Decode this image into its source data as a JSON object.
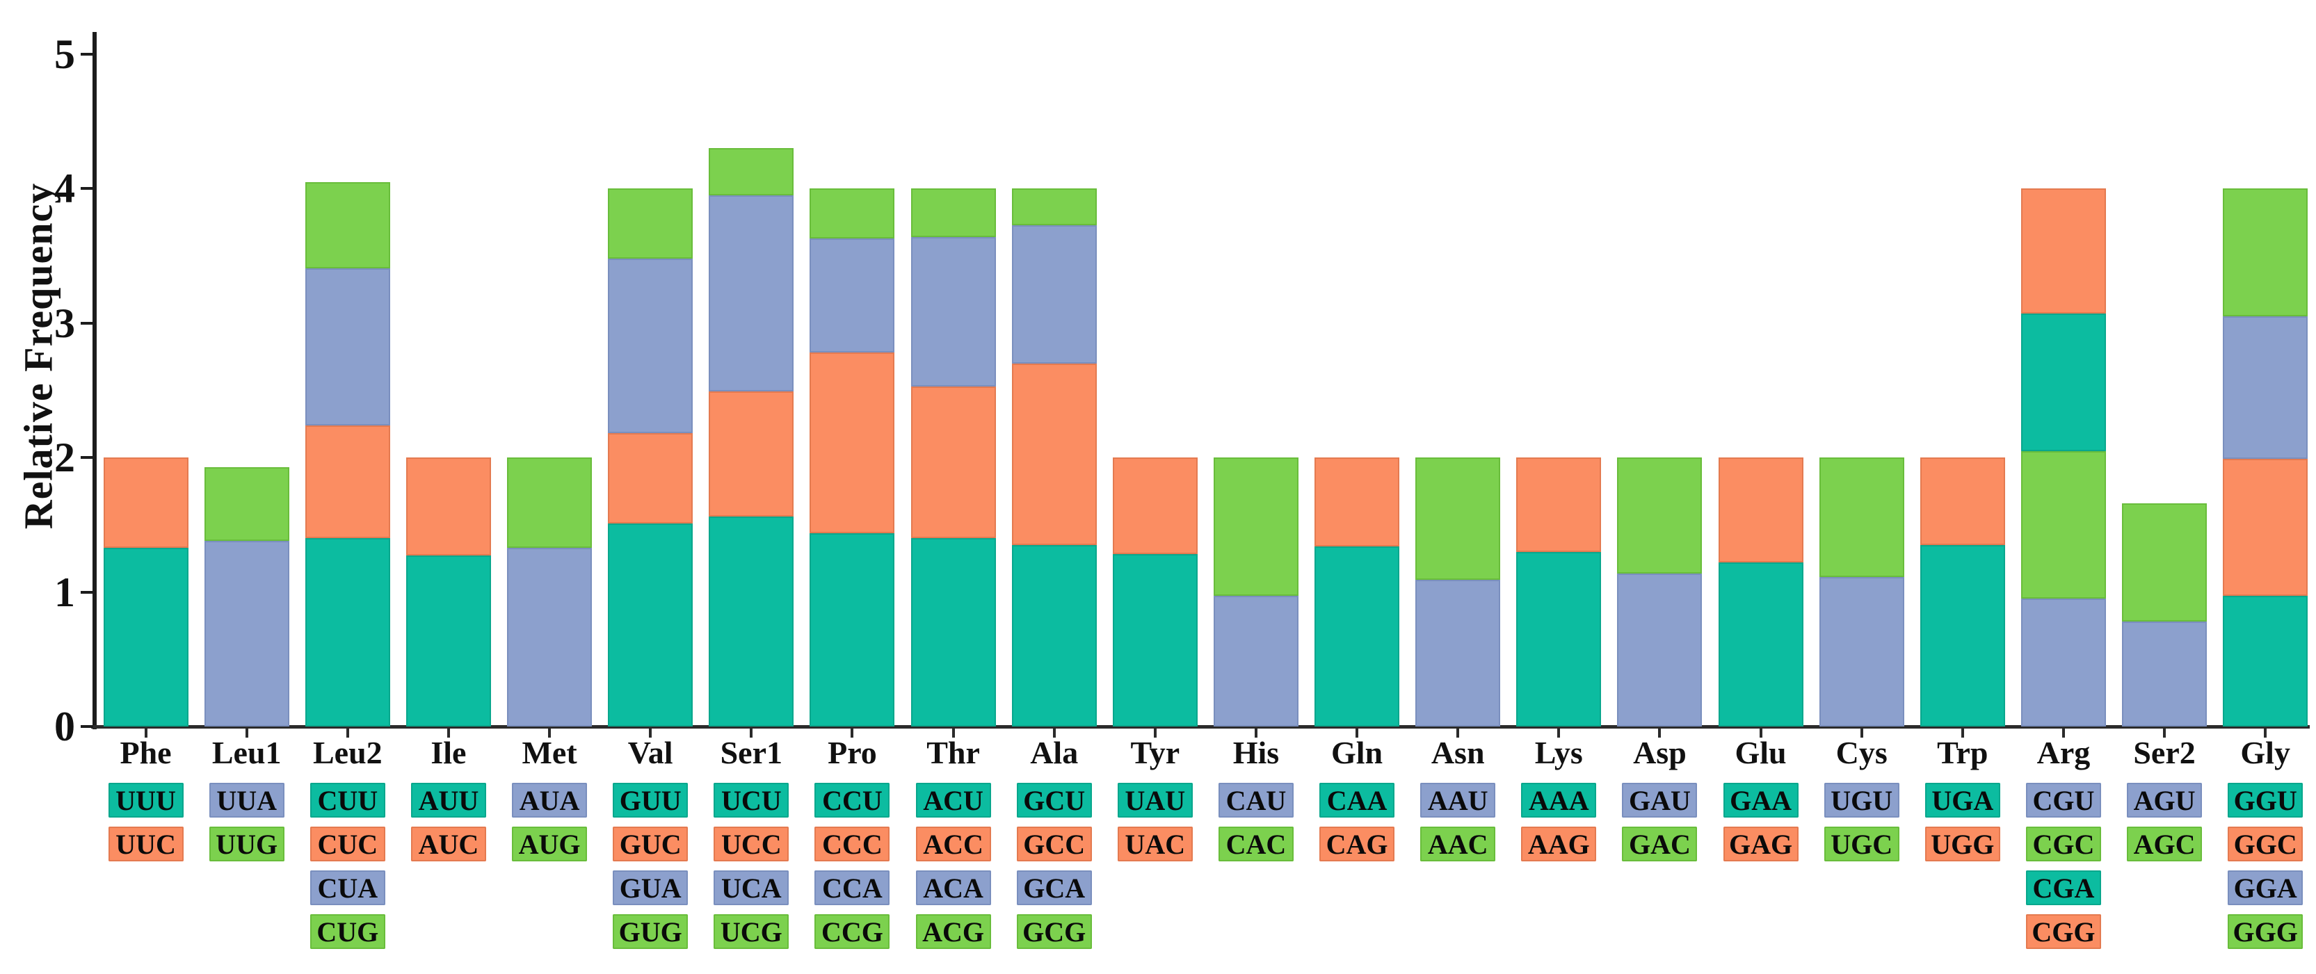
{
  "figure": {
    "background": "#ffffff",
    "axis_color": "#1c1c1c",
    "colors": {
      "teal": "#0CBCA0",
      "orange": "#FB8D62",
      "blue": "#8CA0CD",
      "green": "#7CD14E"
    },
    "border_colors": {
      "teal": "#09A78D",
      "orange": "#E47A50",
      "blue": "#7A8FBE",
      "green": "#69BD3B"
    }
  },
  "chart_data": {
    "type": "bar",
    "stacked": true,
    "title": "",
    "xlabel": "",
    "ylabel": "Relative Frequency",
    "ylim": [
      0,
      5
    ],
    "yticks": [
      "0",
      "1",
      "2",
      "3",
      "4",
      "5"
    ],
    "grid": false,
    "legend_position": "none",
    "legend_note": "codon chips under each category act as the legend",
    "categories": [
      "Phe",
      "Leu1",
      "Leu2",
      "Ile",
      "Met",
      "Val",
      "Ser1",
      "Pro",
      "Thr",
      "Ala",
      "Tyr",
      "His",
      "Gln",
      "Asn",
      "Lys",
      "Asp",
      "Glu",
      "Cys",
      "Trp",
      "Arg",
      "Ser2",
      "Gly"
    ],
    "groups": [
      {
        "label": "Phe",
        "codons": [
          {
            "codon": "UUU",
            "color": "teal",
            "value": 1.33
          },
          {
            "codon": "UUC",
            "color": "orange",
            "value": 0.67
          }
        ]
      },
      {
        "label": "Leu1",
        "codons": [
          {
            "codon": "UUA",
            "color": "blue",
            "value": 1.38
          },
          {
            "codon": "UUG",
            "color": "green",
            "value": 0.55
          }
        ]
      },
      {
        "label": "Leu2",
        "codons": [
          {
            "codon": "CUU",
            "color": "teal",
            "value": 1.4
          },
          {
            "codon": "CUC",
            "color": "orange",
            "value": 0.84
          },
          {
            "codon": "CUA",
            "color": "blue",
            "value": 1.17
          },
          {
            "codon": "CUG",
            "color": "green",
            "value": 0.64
          }
        ]
      },
      {
        "label": "Ile",
        "codons": [
          {
            "codon": "AUU",
            "color": "teal",
            "value": 1.27
          },
          {
            "codon": "AUC",
            "color": "orange",
            "value": 0.73
          }
        ]
      },
      {
        "label": "Met",
        "codons": [
          {
            "codon": "AUA",
            "color": "blue",
            "value": 1.33
          },
          {
            "codon": "AUG",
            "color": "green",
            "value": 0.67
          }
        ]
      },
      {
        "label": "Val",
        "codons": [
          {
            "codon": "GUU",
            "color": "teal",
            "value": 1.51
          },
          {
            "codon": "GUC",
            "color": "orange",
            "value": 0.67
          },
          {
            "codon": "GUA",
            "color": "blue",
            "value": 1.3
          },
          {
            "codon": "GUG",
            "color": "green",
            "value": 0.52
          }
        ]
      },
      {
        "label": "Ser1",
        "codons": [
          {
            "codon": "UCU",
            "color": "teal",
            "value": 1.56
          },
          {
            "codon": "UCC",
            "color": "orange",
            "value": 0.93
          },
          {
            "codon": "UCA",
            "color": "blue",
            "value": 1.46
          },
          {
            "codon": "UCG",
            "color": "green",
            "value": 0.35
          }
        ]
      },
      {
        "label": "Pro",
        "codons": [
          {
            "codon": "CCU",
            "color": "teal",
            "value": 1.44
          },
          {
            "codon": "CCC",
            "color": "orange",
            "value": 1.34
          },
          {
            "codon": "CCA",
            "color": "blue",
            "value": 0.85
          },
          {
            "codon": "CCG",
            "color": "green",
            "value": 0.37
          }
        ]
      },
      {
        "label": "Thr",
        "codons": [
          {
            "codon": "ACU",
            "color": "teal",
            "value": 1.4
          },
          {
            "codon": "ACC",
            "color": "orange",
            "value": 1.13
          },
          {
            "codon": "ACA",
            "color": "blue",
            "value": 1.11
          },
          {
            "codon": "ACG",
            "color": "green",
            "value": 0.36
          }
        ]
      },
      {
        "label": "Ala",
        "codons": [
          {
            "codon": "GCU",
            "color": "teal",
            "value": 1.35
          },
          {
            "codon": "GCC",
            "color": "orange",
            "value": 1.35
          },
          {
            "codon": "GCA",
            "color": "blue",
            "value": 1.03
          },
          {
            "codon": "GCG",
            "color": "green",
            "value": 0.27
          }
        ]
      },
      {
        "label": "Tyr",
        "codons": [
          {
            "codon": "UAU",
            "color": "teal",
            "value": 1.28
          },
          {
            "codon": "UAC",
            "color": "orange",
            "value": 0.72
          }
        ]
      },
      {
        "label": "His",
        "codons": [
          {
            "codon": "CAU",
            "color": "blue",
            "value": 0.97
          },
          {
            "codon": "CAC",
            "color": "green",
            "value": 1.03
          }
        ]
      },
      {
        "label": "Gln",
        "codons": [
          {
            "codon": "CAA",
            "color": "teal",
            "value": 1.34
          },
          {
            "codon": "CAG",
            "color": "orange",
            "value": 0.66
          }
        ]
      },
      {
        "label": "Asn",
        "codons": [
          {
            "codon": "AAU",
            "color": "blue",
            "value": 1.09
          },
          {
            "codon": "AAC",
            "color": "green",
            "value": 0.91
          }
        ]
      },
      {
        "label": "Lys",
        "codons": [
          {
            "codon": "AAA",
            "color": "teal",
            "value": 1.3
          },
          {
            "codon": "AAG",
            "color": "orange",
            "value": 0.7
          }
        ]
      },
      {
        "label": "Asp",
        "codons": [
          {
            "codon": "GAU",
            "color": "blue",
            "value": 1.14
          },
          {
            "codon": "GAC",
            "color": "green",
            "value": 0.86
          }
        ]
      },
      {
        "label": "Glu",
        "codons": [
          {
            "codon": "GAA",
            "color": "teal",
            "value": 1.22
          },
          {
            "codon": "GAG",
            "color": "orange",
            "value": 0.78
          }
        ]
      },
      {
        "label": "Cys",
        "codons": [
          {
            "codon": "UGU",
            "color": "blue",
            "value": 1.11
          },
          {
            "codon": "UGC",
            "color": "green",
            "value": 0.89
          }
        ]
      },
      {
        "label": "Trp",
        "codons": [
          {
            "codon": "UGA",
            "color": "teal",
            "value": 1.35
          },
          {
            "codon": "UGG",
            "color": "orange",
            "value": 0.65
          }
        ]
      },
      {
        "label": "Arg",
        "codons": [
          {
            "codon": "CGU",
            "color": "blue",
            "value": 0.95
          },
          {
            "codon": "CGC",
            "color": "green",
            "value": 1.1
          },
          {
            "codon": "CGA",
            "color": "teal",
            "value": 1.02
          },
          {
            "codon": "CGG",
            "color": "orange",
            "value": 0.93
          }
        ]
      },
      {
        "label": "Ser2",
        "codons": [
          {
            "codon": "AGU",
            "color": "blue",
            "value": 0.78
          },
          {
            "codon": "AGC",
            "color": "green",
            "value": 0.88
          }
        ]
      },
      {
        "label": "Gly",
        "codons": [
          {
            "codon": "GGU",
            "color": "teal",
            "value": 0.97
          },
          {
            "codon": "GGC",
            "color": "orange",
            "value": 1.02
          },
          {
            "codon": "GGA",
            "color": "blue",
            "value": 1.06
          },
          {
            "codon": "GGG",
            "color": "green",
            "value": 0.95
          }
        ]
      }
    ]
  }
}
